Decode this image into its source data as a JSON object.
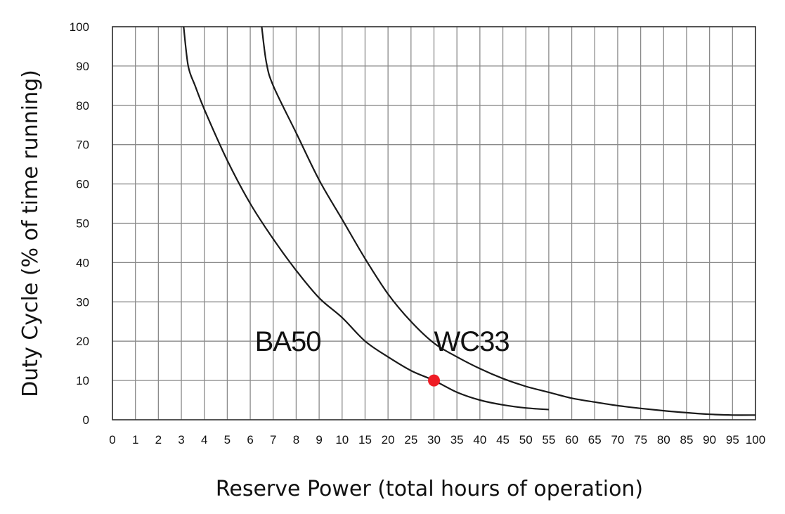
{
  "chart_data": {
    "type": "line",
    "xlabel": "Reserve Power (total hours of operation)",
    "ylabel": "Duty Cycle (% of time running)",
    "x_ticks": [
      "0",
      "1",
      "2",
      "3",
      "4",
      "5",
      "6",
      "7",
      "8",
      "9",
      "10",
      "15",
      "20",
      "25",
      "30",
      "35",
      "40",
      "45",
      "50",
      "55",
      "60",
      "65",
      "70",
      "75",
      "80",
      "85",
      "90",
      "95",
      "100"
    ],
    "y_ticks": [
      "0",
      "10",
      "20",
      "30",
      "40",
      "50",
      "60",
      "70",
      "80",
      "90",
      "100"
    ],
    "ylim": [
      0,
      100
    ],
    "x_scale": "categorical (uneven hour ticks)",
    "grid": true,
    "series": [
      {
        "name": "BA50",
        "points": [
          [
            3.1,
            100
          ],
          [
            3.3,
            90
          ],
          [
            3.6,
            85
          ],
          [
            4,
            79
          ],
          [
            5,
            66
          ],
          [
            6,
            55
          ],
          [
            7,
            46
          ],
          [
            8,
            38
          ],
          [
            9,
            31
          ],
          [
            10,
            26
          ],
          [
            15,
            20
          ],
          [
            20,
            16
          ],
          [
            25,
            12.5
          ],
          [
            30,
            10
          ],
          [
            35,
            7
          ],
          [
            40,
            5
          ],
          [
            45,
            3.8
          ],
          [
            50,
            3
          ],
          [
            55,
            2.6
          ]
        ]
      },
      {
        "name": "WC33",
        "points": [
          [
            6.5,
            100
          ],
          [
            6.7,
            91
          ],
          [
            7,
            85
          ],
          [
            8,
            73
          ],
          [
            9,
            61
          ],
          [
            10,
            51
          ],
          [
            15,
            41
          ],
          [
            20,
            32
          ],
          [
            25,
            25
          ],
          [
            30,
            19.5
          ],
          [
            35,
            16
          ],
          [
            40,
            13
          ],
          [
            45,
            10.5
          ],
          [
            50,
            8.5
          ],
          [
            55,
            7
          ],
          [
            60,
            5.5
          ],
          [
            65,
            4.5
          ],
          [
            70,
            3.6
          ],
          [
            75,
            2.9
          ],
          [
            80,
            2.3
          ],
          [
            85,
            1.8
          ],
          [
            90,
            1.4
          ],
          [
            95,
            1.2
          ],
          [
            100,
            1.2
          ]
        ]
      }
    ],
    "annotations": [
      {
        "type": "point",
        "x": 30,
        "y": 10,
        "color": "#ee1c25"
      }
    ]
  }
}
